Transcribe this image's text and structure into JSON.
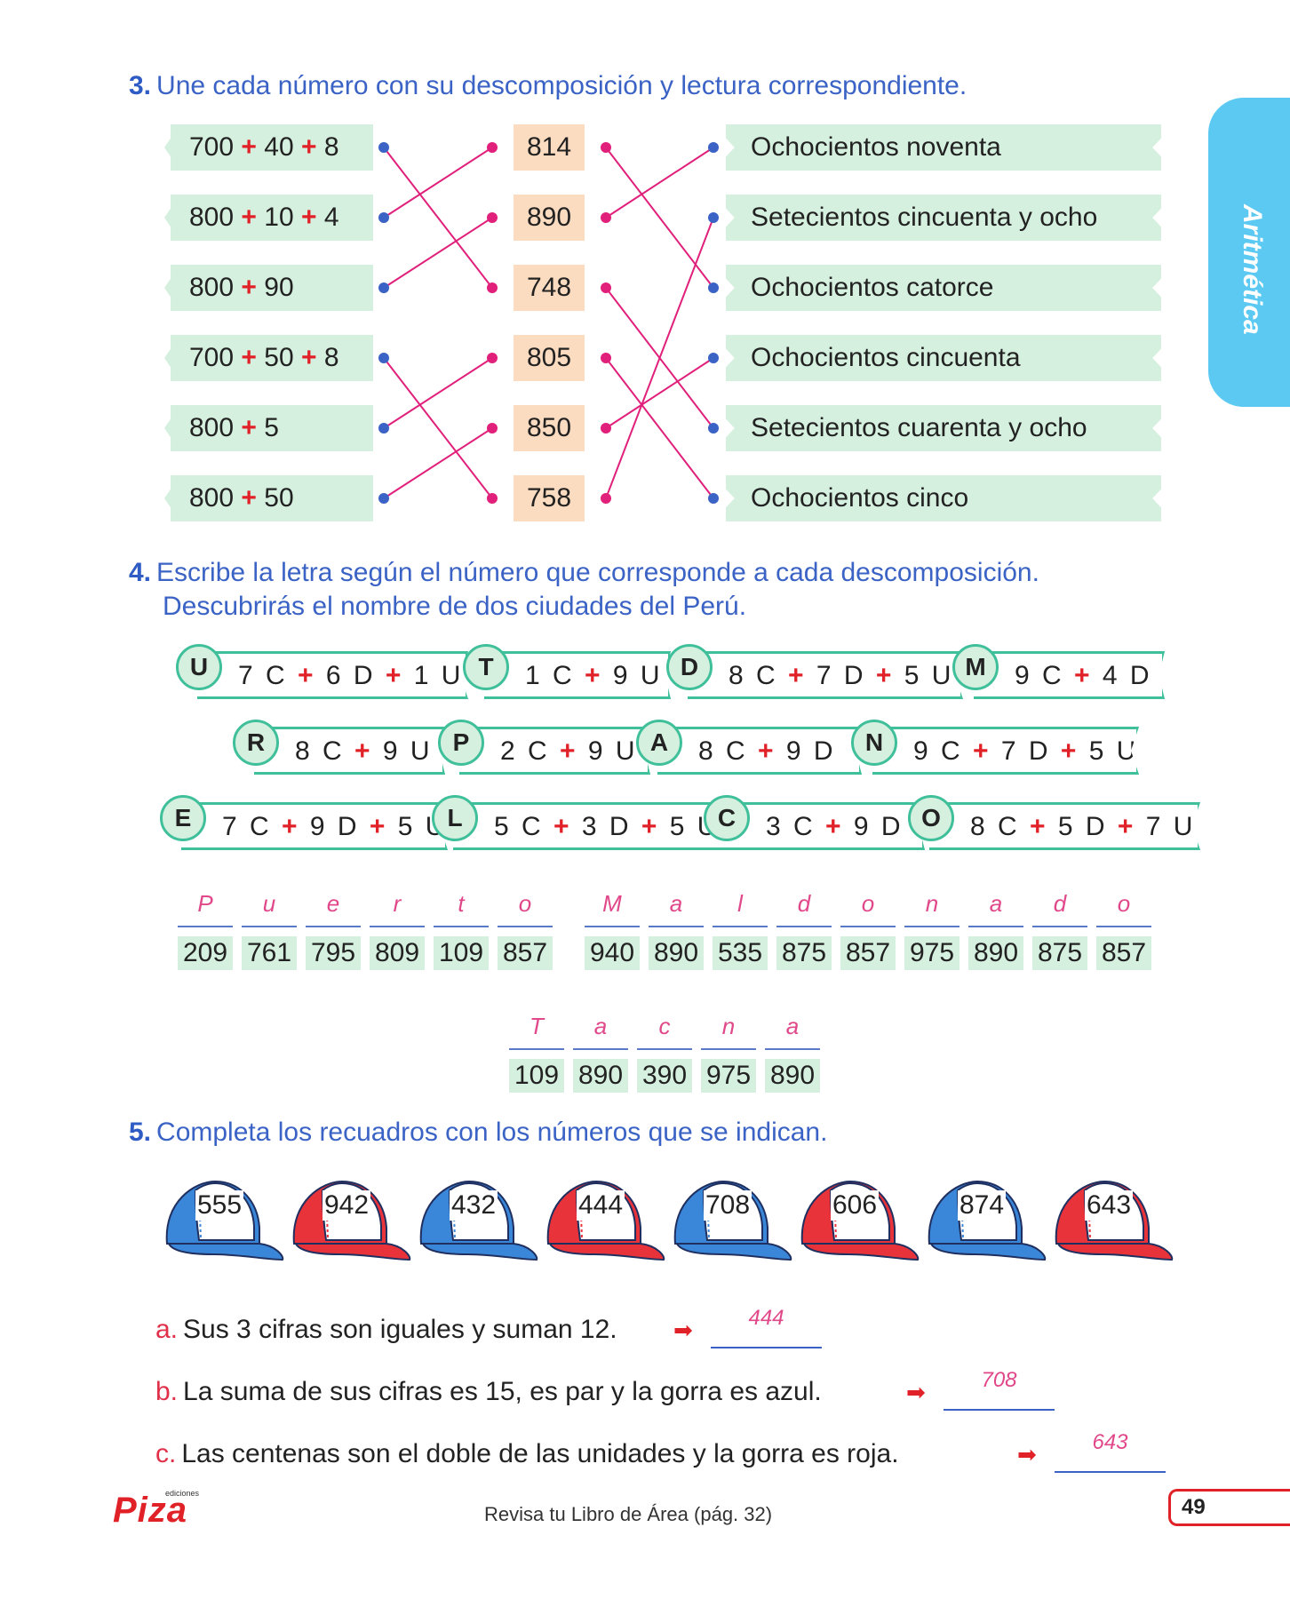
{
  "side_tab": "Aritmética",
  "ex3": {
    "number": "3.",
    "title": "Une cada número con su descomposición y lectura correspondiente.",
    "decomp": [
      [
        "700",
        "40",
        "8"
      ],
      [
        "800",
        "10",
        "4"
      ],
      [
        "800",
        "90"
      ],
      [
        "700",
        "50",
        "8"
      ],
      [
        "800",
        "5"
      ],
      [
        "800",
        "50"
      ]
    ],
    "numbers": [
      "814",
      "890",
      "748",
      "805",
      "850",
      "758"
    ],
    "readings": [
      "Ochocientos noventa",
      "Setecientos cincuenta y ocho",
      "Ochocientos catorce",
      "Ochocientos cincuenta",
      "Setecientos cuarenta y ocho",
      "Ochocientos cinco"
    ],
    "plus": "+"
  },
  "ex4": {
    "number": "4.",
    "title1": "Escribe la letra según el número que corresponde a cada descomposición.",
    "title2": "Descubrirás el nombre de dos ciudades del Perú.",
    "plus": "+",
    "row1": [
      {
        "letter": "U",
        "parts": [
          "7 C",
          "6 D",
          "1 U"
        ]
      },
      {
        "letter": "T",
        "parts": [
          "1 C",
          "9 U"
        ]
      },
      {
        "letter": "D",
        "parts": [
          "8 C",
          "7 D",
          "5 U"
        ]
      },
      {
        "letter": "M",
        "parts": [
          "9 C",
          "4 D"
        ]
      }
    ],
    "row2": [
      {
        "letter": "R",
        "parts": [
          "8 C",
          "9 U"
        ]
      },
      {
        "letter": "P",
        "parts": [
          "2 C",
          "9 U"
        ]
      },
      {
        "letter": "A",
        "parts": [
          "8 C",
          "9 D"
        ]
      },
      {
        "letter": "N",
        "parts": [
          "9 C",
          "7 D",
          "5 U"
        ]
      }
    ],
    "row3": [
      {
        "letter": "E",
        "parts": [
          "7 C",
          "9 D",
          "5 U"
        ]
      },
      {
        "letter": "L",
        "parts": [
          "5 C",
          "3 D",
          "5 U"
        ]
      },
      {
        "letter": "C",
        "parts": [
          "3 C",
          "9 D"
        ]
      },
      {
        "letter": "O",
        "parts": [
          "8 C",
          "5 D",
          "7 U"
        ]
      }
    ],
    "word1": {
      "letters": [
        "P",
        "u",
        "e",
        "r",
        "t",
        "o"
      ],
      "numbers": [
        "209",
        "761",
        "795",
        "809",
        "109",
        "857"
      ]
    },
    "word2": {
      "letters": [
        "M",
        "a",
        "l",
        "d",
        "o",
        "n",
        "a",
        "d",
        "o"
      ],
      "numbers": [
        "940",
        "890",
        "535",
        "875",
        "857",
        "975",
        "890",
        "875",
        "857"
      ]
    },
    "word3": {
      "letters": [
        "T",
        "a",
        "c",
        "n",
        "a"
      ],
      "numbers": [
        "109",
        "890",
        "390",
        "975",
        "890"
      ]
    }
  },
  "ex5": {
    "number": "5.",
    "title": "Completa los recuadros con los números que se indican.",
    "caps": [
      {
        "value": "555",
        "color": "#3a86d8"
      },
      {
        "value": "942",
        "color": "#e8333b"
      },
      {
        "value": "432",
        "color": "#3a86d8"
      },
      {
        "value": "444",
        "color": "#e8333b"
      },
      {
        "value": "708",
        "color": "#3a86d8"
      },
      {
        "value": "606",
        "color": "#e8333b"
      },
      {
        "value": "874",
        "color": "#3a86d8"
      },
      {
        "value": "643",
        "color": "#e8333b"
      }
    ],
    "questions": [
      {
        "label": "a.",
        "text": "Sus 3 cifras son iguales y suman 12.",
        "answer": "444"
      },
      {
        "label": "b.",
        "text": "La suma de sus cifras es 15, es par y la gorra es azul.",
        "answer": "708"
      },
      {
        "label": "c.",
        "text": "Las centenas son el doble de las unidades y la gorra es roja.",
        "answer": "643"
      }
    ]
  },
  "footer": {
    "logo": "Piza",
    "logo_small": "ediciones",
    "note": "Revisa tu Libro de Área (pág. 32)",
    "page": "49"
  }
}
